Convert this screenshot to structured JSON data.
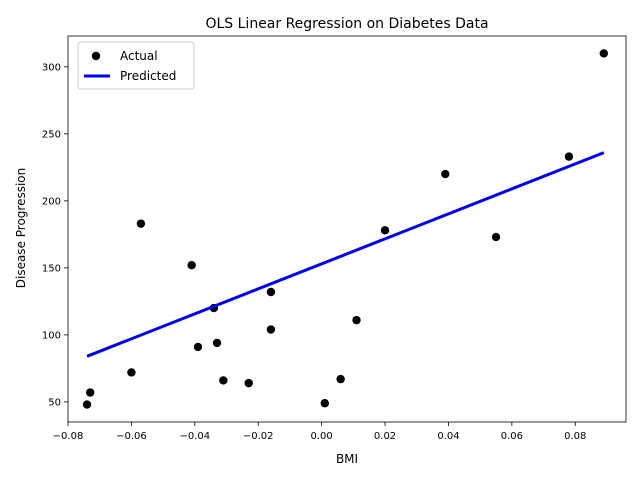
{
  "chart_data": {
    "type": "scatter",
    "title": "OLS Linear Regression on Diabetes Data",
    "xlabel": "BMI",
    "ylabel": "Disease Progression",
    "xlim": [
      -0.08,
      0.096
    ],
    "ylim": [
      35,
      323
    ],
    "x_ticks": [
      -0.08,
      -0.06,
      -0.04,
      -0.02,
      0.0,
      0.02,
      0.04,
      0.06,
      0.08
    ],
    "x_tick_labels": [
      "−0.08",
      "−0.06",
      "−0.04",
      "−0.02",
      "0.00",
      "0.02",
      "0.04",
      "0.06",
      "0.08"
    ],
    "y_ticks": [
      50,
      100,
      150,
      200,
      250,
      300
    ],
    "y_tick_labels": [
      "50",
      "100",
      "150",
      "200",
      "250",
      "300"
    ],
    "grid": false,
    "legend_position": "top-left",
    "series": [
      {
        "name": "Actual",
        "kind": "scatter",
        "color": "#000000",
        "points": [
          [
            -0.074,
            48
          ],
          [
            -0.073,
            57
          ],
          [
            -0.06,
            72
          ],
          [
            -0.057,
            183
          ],
          [
            -0.041,
            152
          ],
          [
            -0.039,
            91
          ],
          [
            -0.034,
            120
          ],
          [
            -0.033,
            94
          ],
          [
            -0.031,
            66
          ],
          [
            -0.023,
            64
          ],
          [
            -0.016,
            132
          ],
          [
            -0.016,
            104
          ],
          [
            0.001,
            49
          ],
          [
            0.006,
            67
          ],
          [
            0.011,
            111
          ],
          [
            0.02,
            178
          ],
          [
            0.039,
            220
          ],
          [
            0.055,
            173
          ],
          [
            0.078,
            233
          ],
          [
            0.089,
            310
          ]
        ]
      },
      {
        "name": "Predicted",
        "kind": "line",
        "color": "#0000ff",
        "points": [
          [
            -0.074,
            84
          ],
          [
            0.089,
            236
          ]
        ]
      }
    ]
  }
}
